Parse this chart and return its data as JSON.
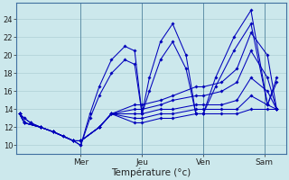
{
  "background_color": "#cce8ec",
  "grid_color": "#a8c8d0",
  "line_color": "#0000bb",
  "xlabel": "Température (°c)",
  "yticks": [
    10,
    12,
    14,
    16,
    18,
    20,
    22,
    24
  ],
  "ylim": [
    9.0,
    25.8
  ],
  "day_labels": [
    "Mer",
    "Jeu",
    "Ven",
    "Sam"
  ],
  "day_positions": [
    1.0,
    2.0,
    3.0,
    4.0
  ],
  "xlim": [
    -0.05,
    4.35
  ],
  "series_x": [
    [
      0.0,
      0.08,
      0.18,
      0.35,
      0.55,
      0.72,
      0.88,
      1.0,
      1.15,
      1.3,
      1.5,
      1.72,
      1.88,
      2.0,
      2.12,
      2.3,
      2.5,
      2.72,
      2.88,
      3.0,
      3.2,
      3.5,
      3.78,
      4.05,
      4.2
    ],
    [
      0.0,
      0.08,
      0.18,
      0.35,
      0.55,
      0.72,
      0.88,
      1.0,
      1.15,
      1.3,
      1.5,
      1.72,
      1.88,
      2.0,
      2.12,
      2.3,
      2.5,
      2.72,
      2.88,
      3.0,
      3.2,
      3.5,
      3.78,
      4.05,
      4.2
    ],
    [
      0.0,
      0.08,
      0.35,
      0.55,
      0.88,
      1.0,
      1.3,
      1.5,
      1.88,
      2.0,
      2.3,
      2.5,
      2.88,
      3.0,
      3.3,
      3.55,
      3.78,
      4.05,
      4.2
    ],
    [
      0.0,
      0.08,
      0.35,
      0.55,
      0.88,
      1.0,
      1.3,
      1.5,
      1.88,
      2.0,
      2.3,
      2.5,
      2.88,
      3.0,
      3.3,
      3.55,
      3.78,
      4.05,
      4.2
    ],
    [
      0.0,
      0.08,
      0.35,
      0.55,
      0.88,
      1.0,
      1.3,
      1.5,
      1.88,
      2.0,
      2.3,
      2.5,
      2.88,
      3.0,
      3.3,
      3.55,
      3.78,
      4.05,
      4.2
    ],
    [
      0.0,
      0.08,
      0.35,
      0.55,
      0.88,
      1.0,
      1.3,
      1.5,
      1.88,
      2.0,
      2.3,
      2.5,
      2.88,
      3.0,
      3.3,
      3.55,
      3.78,
      4.05,
      4.2
    ],
    [
      0.0,
      0.08,
      0.35,
      0.55,
      0.88,
      1.0,
      1.3,
      1.5,
      1.88,
      2.0,
      2.3,
      2.5,
      2.88,
      3.0,
      3.3,
      3.55,
      3.78,
      4.05,
      4.2
    ]
  ],
  "series_y": [
    [
      13.5,
      13.0,
      12.5,
      12.0,
      11.5,
      11.0,
      10.5,
      10.0,
      13.5,
      16.5,
      19.5,
      21.0,
      20.5,
      13.5,
      17.5,
      21.5,
      23.5,
      20.0,
      13.5,
      13.5,
      17.5,
      22.0,
      25.0,
      14.5,
      17.5
    ],
    [
      13.5,
      13.0,
      12.5,
      12.0,
      11.5,
      11.0,
      10.5,
      10.0,
      13.0,
      15.5,
      18.0,
      19.5,
      19.0,
      13.5,
      16.0,
      19.5,
      21.5,
      18.5,
      13.5,
      13.5,
      16.5,
      20.5,
      23.5,
      14.5,
      17.0
    ],
    [
      13.5,
      12.5,
      12.0,
      11.5,
      10.5,
      10.5,
      12.0,
      13.5,
      14.5,
      14.5,
      15.0,
      15.5,
      16.5,
      16.5,
      17.0,
      18.5,
      22.5,
      20.0,
      14.0
    ],
    [
      13.5,
      12.5,
      12.0,
      11.5,
      10.5,
      10.5,
      12.0,
      13.5,
      14.0,
      14.0,
      14.5,
      15.0,
      15.5,
      15.5,
      16.0,
      17.0,
      20.5,
      17.5,
      14.0
    ],
    [
      13.5,
      12.5,
      12.0,
      11.5,
      10.5,
      10.5,
      12.0,
      13.5,
      13.5,
      13.5,
      14.0,
      14.0,
      14.5,
      14.5,
      14.5,
      15.0,
      17.5,
      16.0,
      14.0
    ],
    [
      13.5,
      12.5,
      12.0,
      11.5,
      10.5,
      10.5,
      12.0,
      13.5,
      13.0,
      13.0,
      13.5,
      13.5,
      14.0,
      14.0,
      14.0,
      14.0,
      15.5,
      14.5,
      14.0
    ],
    [
      13.5,
      12.5,
      12.0,
      11.5,
      10.5,
      10.5,
      12.0,
      13.5,
      12.5,
      12.5,
      13.0,
      13.0,
      13.5,
      13.5,
      13.5,
      13.5,
      14.0,
      14.0,
      14.0
    ]
  ]
}
